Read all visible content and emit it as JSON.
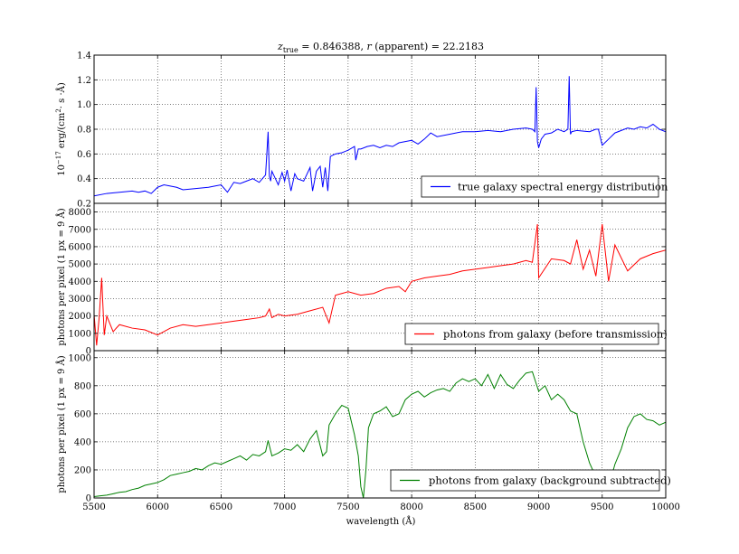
{
  "figure": {
    "title_parts": {
      "z": "z",
      "z_sub": "true",
      "rest": " = 0.846388, ",
      "r": "r",
      "r_rest": " (apparent) = 22.2183"
    },
    "xlabel": "wavelength (Å)"
  },
  "chart_data": [
    {
      "type": "line",
      "ylabel": "10⁻¹⁷ erg/(cm²· s ·Å)",
      "ylabel_parts": {
        "prefix": "10",
        "sup1": "−17",
        "mid": " erg/(cm",
        "sup2": "2",
        "end": "· s ·Å)"
      },
      "xlim": [
        5500,
        10000
      ],
      "ylim": [
        0.2,
        1.4
      ],
      "xticks": [
        5500,
        6000,
        6500,
        7000,
        7500,
        8000,
        8500,
        9000,
        9500,
        10000
      ],
      "yticks": [
        0.2,
        0.4,
        0.6,
        0.8,
        1.0,
        1.2,
        1.4
      ],
      "ytick_labels": [
        "0.2",
        "0.4",
        "0.6",
        "0.8",
        "1.0",
        "1.2",
        "1.4"
      ],
      "grid": true,
      "legend_position": "lower-right",
      "series": [
        {
          "name": "true galaxy spectral energy distribution",
          "color": "#0000ff",
          "x": [
            5500,
            5600,
            5700,
            5800,
            5850,
            5900,
            5950,
            6000,
            6050,
            6100,
            6150,
            6200,
            6300,
            6400,
            6450,
            6500,
            6550,
            6600,
            6650,
            6700,
            6750,
            6800,
            6850,
            6870,
            6880,
            6890,
            6900,
            6950,
            6980,
            7000,
            7020,
            7050,
            7080,
            7100,
            7150,
            7200,
            7220,
            7250,
            7280,
            7300,
            7320,
            7340,
            7360,
            7400,
            7450,
            7500,
            7550,
            7560,
            7580,
            7600,
            7650,
            7700,
            7750,
            7800,
            7850,
            7900,
            7950,
            8000,
            8050,
            8100,
            8150,
            8200,
            8300,
            8400,
            8500,
            8600,
            8700,
            8800,
            8900,
            8950,
            8970,
            8980,
            8990,
            9000,
            9020,
            9050,
            9100,
            9150,
            9200,
            9230,
            9240,
            9250,
            9260,
            9300,
            9400,
            9450,
            9470,
            9500,
            9550,
            9600,
            9650,
            9700,
            9750,
            9800,
            9850,
            9900,
            9950,
            10000
          ],
          "y": [
            0.26,
            0.28,
            0.29,
            0.3,
            0.29,
            0.3,
            0.28,
            0.33,
            0.35,
            0.34,
            0.33,
            0.31,
            0.32,
            0.33,
            0.34,
            0.35,
            0.29,
            0.37,
            0.36,
            0.38,
            0.4,
            0.37,
            0.43,
            0.78,
            0.42,
            0.38,
            0.46,
            0.35,
            0.45,
            0.38,
            0.47,
            0.3,
            0.44,
            0.4,
            0.38,
            0.49,
            0.3,
            0.46,
            0.5,
            0.33,
            0.49,
            0.3,
            0.58,
            0.6,
            0.61,
            0.63,
            0.66,
            0.55,
            0.64,
            0.64,
            0.66,
            0.67,
            0.65,
            0.67,
            0.66,
            0.69,
            0.7,
            0.71,
            0.68,
            0.72,
            0.77,
            0.74,
            0.76,
            0.78,
            0.78,
            0.79,
            0.78,
            0.8,
            0.81,
            0.8,
            0.78,
            1.14,
            0.7,
            0.65,
            0.72,
            0.76,
            0.77,
            0.8,
            0.78,
            0.8,
            1.23,
            0.76,
            0.78,
            0.79,
            0.78,
            0.8,
            0.8,
            0.67,
            0.72,
            0.77,
            0.79,
            0.81,
            0.8,
            0.82,
            0.81,
            0.84,
            0.8,
            0.78
          ]
        }
      ]
    },
    {
      "type": "line",
      "ylabel": "photons per pixel (1 px = 9 Å)",
      "xlim": [
        5500,
        10000
      ],
      "ylim": [
        0,
        8500
      ],
      "xticks": [
        5500,
        6000,
        6500,
        7000,
        7500,
        8000,
        8500,
        9000,
        9500,
        10000
      ],
      "yticks": [
        0,
        1000,
        2000,
        3000,
        4000,
        5000,
        6000,
        7000,
        8000
      ],
      "ytick_labels": [
        "0",
        "1000",
        "2000",
        "3000",
        "4000",
        "5000",
        "6000",
        "7000",
        "8000"
      ],
      "grid": true,
      "legend_position": "lower-right",
      "series": [
        {
          "name": "photons from galaxy (before transmission)",
          "color": "#ff0000",
          "x": [
            5500,
            5520,
            5540,
            5560,
            5580,
            5600,
            5650,
            5700,
            5800,
            5900,
            6000,
            6100,
            6200,
            6300,
            6400,
            6500,
            6600,
            6700,
            6800,
            6850,
            6880,
            6900,
            6950,
            7000,
            7100,
            7200,
            7300,
            7350,
            7400,
            7450,
            7500,
            7600,
            7700,
            7800,
            7900,
            7950,
            8000,
            8100,
            8200,
            8300,
            8400,
            8500,
            8600,
            8700,
            8800,
            8900,
            8950,
            8990,
            9000,
            9100,
            9200,
            9250,
            9300,
            9350,
            9400,
            9450,
            9500,
            9550,
            9600,
            9700,
            9800,
            9900,
            10000
          ],
          "y": [
            2100,
            300,
            1900,
            4200,
            900,
            2000,
            1100,
            1500,
            1300,
            1200,
            900,
            1300,
            1500,
            1400,
            1500,
            1600,
            1700,
            1800,
            1900,
            2000,
            2400,
            1900,
            2100,
            2000,
            2100,
            2300,
            2500,
            1600,
            3200,
            3300,
            3400,
            3200,
            3300,
            3600,
            3700,
            3400,
            4000,
            4200,
            4300,
            4400,
            4600,
            4700,
            4800,
            4900,
            5000,
            5200,
            5100,
            7300,
            4200,
            5300,
            5200,
            5000,
            6400,
            4700,
            5800,
            4300,
            7300,
            4000,
            6100,
            4600,
            5300,
            5600,
            5800
          ]
        }
      ]
    },
    {
      "type": "line",
      "ylabel": "photons per pixel (1 px = 9 Å)",
      "xlim": [
        5500,
        10000
      ],
      "ylim": [
        0,
        1050
      ],
      "xticks": [
        5500,
        6000,
        6500,
        7000,
        7500,
        8000,
        8500,
        9000,
        9500,
        10000
      ],
      "xtick_labels": [
        "5500",
        "6000",
        "6500",
        "7000",
        "7500",
        "8000",
        "8500",
        "9000",
        "9500",
        "10000"
      ],
      "yticks": [
        0,
        200,
        400,
        600,
        800,
        1000
      ],
      "ytick_labels": [
        "0",
        "200",
        "400",
        "600",
        "800",
        "1000"
      ],
      "grid": true,
      "legend_position": "lower-right",
      "series": [
        {
          "name": "photons from galaxy (background subtracted)",
          "color": "#008000",
          "x": [
            5500,
            5550,
            5600,
            5650,
            5700,
            5750,
            5800,
            5850,
            5900,
            5950,
            6000,
            6050,
            6100,
            6150,
            6200,
            6250,
            6300,
            6350,
            6400,
            6450,
            6500,
            6550,
            6600,
            6650,
            6700,
            6750,
            6800,
            6850,
            6870,
            6900,
            6950,
            7000,
            7050,
            7100,
            7150,
            7200,
            7250,
            7300,
            7330,
            7350,
            7400,
            7450,
            7500,
            7550,
            7580,
            7600,
            7620,
            7640,
            7660,
            7700,
            7750,
            7800,
            7850,
            7900,
            7950,
            8000,
            8050,
            8100,
            8150,
            8200,
            8250,
            8300,
            8350,
            8400,
            8450,
            8500,
            8550,
            8600,
            8650,
            8700,
            8750,
            8800,
            8850,
            8900,
            8950,
            9000,
            9050,
            9100,
            9150,
            9200,
            9250,
            9300,
            9350,
            9400,
            9450,
            9500,
            9550,
            9600,
            9650,
            9700,
            9750,
            9800,
            9850,
            9900,
            9950,
            10000
          ],
          "y": [
            10,
            15,
            20,
            30,
            40,
            45,
            60,
            70,
            90,
            100,
            110,
            130,
            160,
            170,
            180,
            190,
            210,
            200,
            230,
            250,
            240,
            260,
            280,
            300,
            270,
            310,
            300,
            330,
            410,
            300,
            320,
            350,
            340,
            380,
            330,
            420,
            480,
            300,
            330,
            520,
            600,
            660,
            640,
            450,
            300,
            80,
            0,
            200,
            500,
            600,
            620,
            650,
            580,
            600,
            700,
            740,
            760,
            720,
            750,
            770,
            780,
            760,
            820,
            850,
            830,
            850,
            800,
            880,
            780,
            880,
            810,
            780,
            840,
            890,
            900,
            760,
            800,
            700,
            740,
            700,
            620,
            600,
            400,
            250,
            150,
            120,
            80,
            240,
            350,
            500,
            580,
            600,
            560,
            550,
            520,
            540
          ]
        }
      ]
    }
  ]
}
